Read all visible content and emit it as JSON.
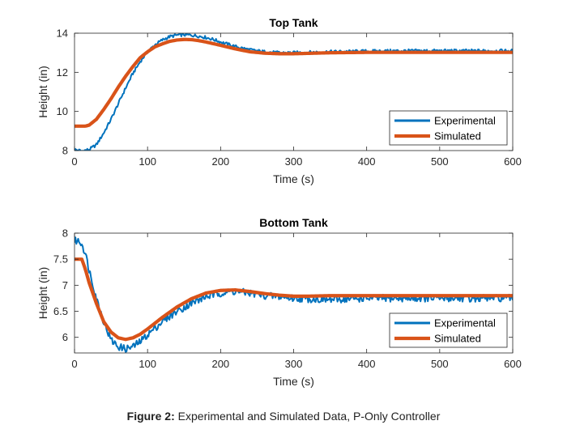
{
  "caption": {
    "label": "Figure 2:",
    "text": "Experimental and Simulated Data, P-Only Controller"
  },
  "colors": {
    "experimental": "#0072BD",
    "simulated": "#D95319",
    "axis": "#262626",
    "background": "#ffffff"
  },
  "chart_data": [
    {
      "type": "line",
      "title": "Top Tank",
      "xlabel": "Time (s)",
      "ylabel": "Height (in)",
      "xlim": [
        0,
        600
      ],
      "ylim": [
        8,
        14
      ],
      "xticks": [
        0,
        100,
        200,
        300,
        400,
        500,
        600
      ],
      "yticks": [
        8,
        10,
        12,
        14
      ],
      "grid": false,
      "legend": {
        "placement": "bottom-right",
        "entries": [
          "Experimental",
          "Simulated"
        ]
      },
      "series": [
        {
          "name": "Experimental",
          "color": "#0072BD",
          "noise": 0.08,
          "x": [
            0,
            10,
            20,
            30,
            40,
            50,
            60,
            70,
            80,
            90,
            100,
            110,
            120,
            130,
            140,
            150,
            160,
            170,
            180,
            190,
            200,
            220,
            240,
            260,
            280,
            300,
            350,
            400,
            450,
            500,
            550,
            600
          ],
          "y": [
            8.05,
            7.98,
            8.05,
            8.3,
            8.9,
            9.6,
            10.4,
            11.2,
            11.95,
            12.55,
            13.05,
            13.4,
            13.65,
            13.82,
            13.9,
            13.92,
            13.9,
            13.85,
            13.78,
            13.68,
            13.55,
            13.32,
            13.15,
            13.05,
            13.0,
            13.0,
            13.05,
            13.08,
            13.1,
            13.1,
            13.1,
            13.1
          ]
        },
        {
          "name": "Simulated",
          "color": "#D95319",
          "x": [
            0,
            5,
            10,
            15,
            20,
            30,
            40,
            50,
            60,
            70,
            80,
            90,
            100,
            110,
            120,
            130,
            140,
            150,
            160,
            170,
            180,
            200,
            220,
            240,
            260,
            280,
            300,
            320,
            350,
            400,
            450,
            500,
            550,
            600
          ],
          "y": [
            9.25,
            9.25,
            9.25,
            9.25,
            9.3,
            9.6,
            10.1,
            10.65,
            11.25,
            11.8,
            12.3,
            12.75,
            13.05,
            13.3,
            13.45,
            13.58,
            13.65,
            13.68,
            13.67,
            13.62,
            13.55,
            13.38,
            13.2,
            13.05,
            12.98,
            12.95,
            12.95,
            12.97,
            13.0,
            13.02,
            13.02,
            13.02,
            13.02,
            13.02
          ]
        }
      ]
    },
    {
      "type": "line",
      "title": "Bottom Tank",
      "xlabel": "Time (s)",
      "ylabel": "Height (in)",
      "xlim": [
        0,
        600
      ],
      "ylim": [
        5.7,
        8
      ],
      "xticks": [
        0,
        100,
        200,
        300,
        400,
        500,
        600
      ],
      "yticks": [
        6,
        6.5,
        7,
        7.5,
        8
      ],
      "grid": false,
      "legend": {
        "placement": "bottom-right",
        "entries": [
          "Experimental",
          "Simulated"
        ]
      },
      "series": [
        {
          "name": "Experimental",
          "color": "#0072BD",
          "noise": 0.07,
          "x": [
            0,
            5,
            10,
            15,
            20,
            30,
            40,
            50,
            60,
            70,
            80,
            90,
            100,
            120,
            140,
            160,
            180,
            200,
            220,
            240,
            260,
            280,
            300,
            350,
            400,
            450,
            500,
            550,
            600
          ],
          "y": [
            7.85,
            7.85,
            7.8,
            7.6,
            7.3,
            6.75,
            6.3,
            5.95,
            5.82,
            5.78,
            5.82,
            5.92,
            6.05,
            6.3,
            6.5,
            6.65,
            6.78,
            6.85,
            6.88,
            6.85,
            6.8,
            6.78,
            6.75,
            6.72,
            6.75,
            6.75,
            6.75,
            6.75,
            6.75
          ]
        },
        {
          "name": "Simulated",
          "color": "#D95319",
          "x": [
            0,
            5,
            10,
            15,
            20,
            30,
            40,
            50,
            60,
            70,
            80,
            90,
            100,
            120,
            140,
            160,
            180,
            200,
            220,
            240,
            260,
            280,
            300,
            320,
            350,
            400,
            450,
            500,
            550,
            600
          ],
          "y": [
            7.5,
            7.5,
            7.5,
            7.3,
            7.05,
            6.65,
            6.3,
            6.1,
            5.99,
            5.96,
            5.99,
            6.06,
            6.16,
            6.38,
            6.58,
            6.74,
            6.85,
            6.9,
            6.91,
            6.88,
            6.84,
            6.81,
            6.79,
            6.79,
            6.8,
            6.8,
            6.8,
            6.8,
            6.8,
            6.8
          ]
        }
      ]
    }
  ]
}
